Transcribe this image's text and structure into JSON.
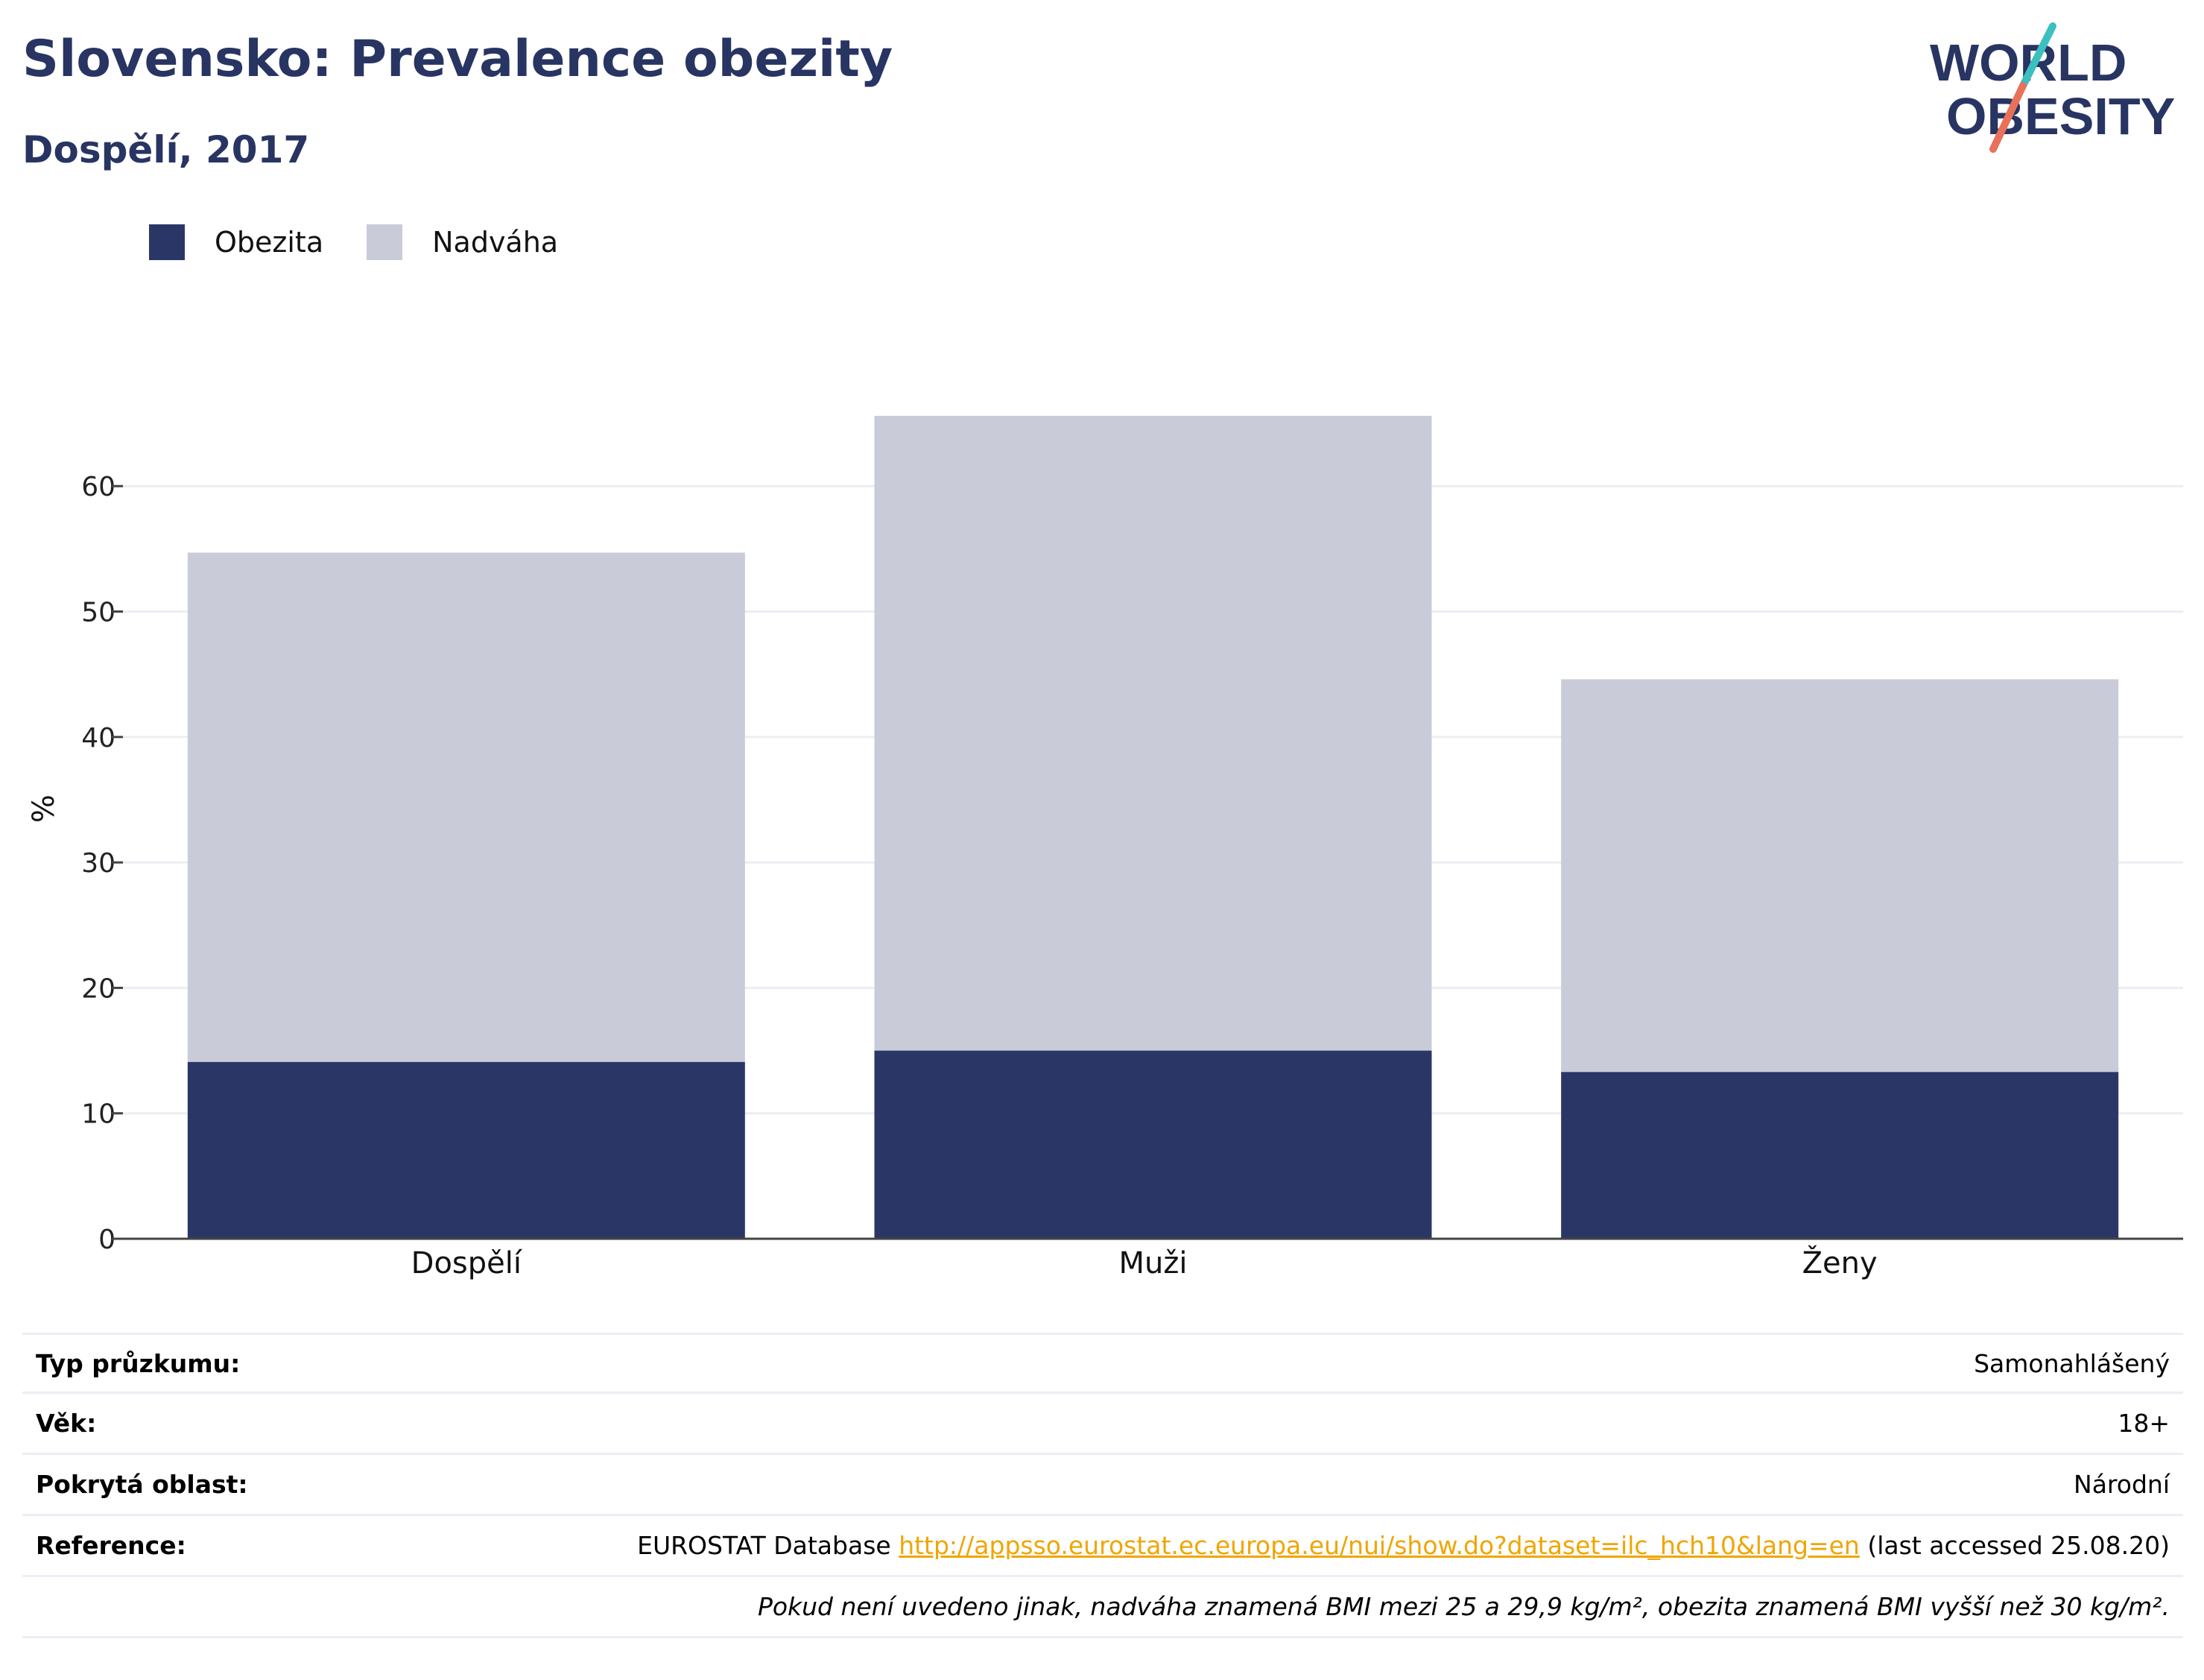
{
  "header": {
    "title": "Slovensko: Prevalence obezity",
    "subtitle": "Dospělí, 2017"
  },
  "logo": {
    "line1": "WORLD",
    "line2": "OBESITY",
    "colors": {
      "text": "#283462",
      "slash_top": "#3cbfbf",
      "slash_bottom": "#e8715a"
    }
  },
  "colors": {
    "obesity": "#2a3766",
    "overweight": "#c9ccd8",
    "grid": "#eceef4",
    "axis": "#444444"
  },
  "chart_data": {
    "type": "bar",
    "stacked": true,
    "categories": [
      "Dospělí",
      "Muži",
      "Ženy"
    ],
    "series": [
      {
        "name": "Obezita",
        "values": [
          14.1,
          15.0,
          13.3
        ]
      },
      {
        "name": "Nadváha",
        "values": [
          40.6,
          50.6,
          31.3
        ]
      }
    ],
    "ylabel": "%",
    "xlabel": "",
    "ylim": [
      0,
      70
    ],
    "yticks": [
      0,
      10,
      20,
      30,
      40,
      50,
      60
    ],
    "grid": true,
    "legend_position": "top-left"
  },
  "info": {
    "rows": [
      {
        "label": "Typ průzkumu:",
        "value": "Samonahlášený"
      },
      {
        "label": "Věk:",
        "value": "18+"
      },
      {
        "label": "Pokrytá oblast:",
        "value": "Národní"
      }
    ],
    "reference": {
      "label": "Reference:",
      "prefix": "EUROSTAT Database ",
      "link": "http://appsso.eurostat.ec.europa.eu/nui/show.do?dataset=ilc_hch10&lang=en",
      "suffix": " (last accessed 25.08.20)"
    },
    "note": "Pokud není uvedeno jinak, nadváha znamená BMI mezi 25 a 29,9 kg/m², obezita znamená BMI vyšší než 30 kg/m²."
  }
}
